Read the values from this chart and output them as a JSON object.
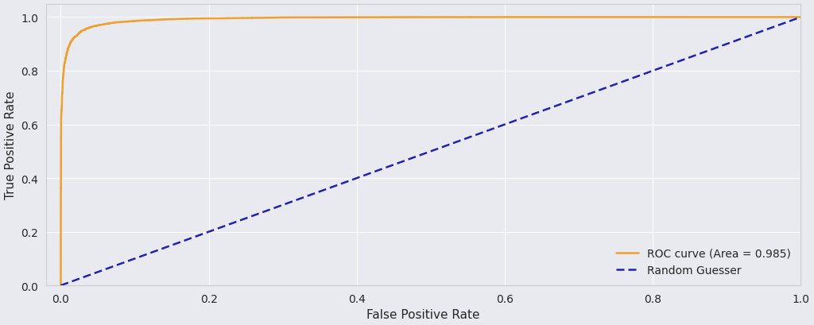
{
  "title": "",
  "xlabel": "False Positive Rate",
  "ylabel": "True Positive Rate",
  "roc_auc": 0.985,
  "roc_color": "#f0a030",
  "random_color": "#2222aa",
  "background_color": "#e8eaf0",
  "grid_color": "#ffffff",
  "figsize": [
    10.24,
    4.1
  ],
  "dpi": 100,
  "xlim": [
    -0.02,
    1.0
  ],
  "ylim": [
    0.0,
    1.05
  ],
  "xticks": [
    0.0,
    0.2,
    0.4,
    0.6,
    0.8,
    1.0
  ],
  "yticks": [
    0.0,
    0.2,
    0.4,
    0.6,
    0.8,
    1.0
  ],
  "legend_loc": "lower right",
  "roc_label": "ROC curve (Area = 0.985)",
  "random_label": "Random Guesser",
  "roc_linewidth": 1.8,
  "random_linewidth": 1.8
}
